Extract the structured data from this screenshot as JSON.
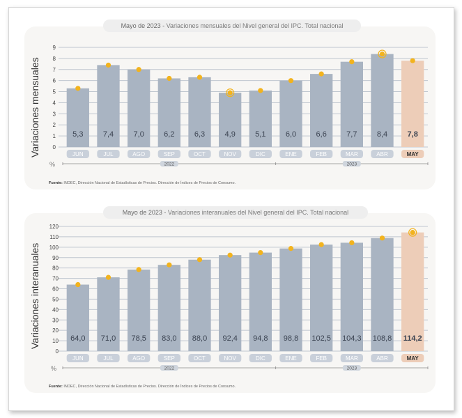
{
  "chart_data": [
    {
      "type": "bar",
      "title_prefix": "Mayo de 2023 -",
      "title": "Variaciones mensuales del Nivel general del IPC. Total nacional",
      "ylabel": "Variaciones mensuales",
      "unit": "%",
      "categories": [
        "JUN",
        "JUL",
        "AGO",
        "SEP",
        "OCT",
        "NOV",
        "DIC",
        "ENE",
        "FEB",
        "MAR",
        "ABR",
        "MAY"
      ],
      "values": [
        5.3,
        7.4,
        7.0,
        6.2,
        6.3,
        4.9,
        5.1,
        6.0,
        6.6,
        7.7,
        8.4,
        7.8
      ],
      "value_labels": [
        "5,3",
        "7,4",
        "7,0",
        "6,2",
        "6,3",
        "4,9",
        "5,1",
        "6,0",
        "6,6",
        "7,7",
        "8,4",
        "7,8"
      ],
      "ylim": [
        0,
        9
      ],
      "yticks": [
        "0",
        "1",
        "2",
        "3",
        "4",
        "5",
        "6",
        "7",
        "8",
        "9"
      ],
      "year_groups": [
        "2022",
        "2023"
      ],
      "highlight_index": 11,
      "ringed_indices": [
        5,
        10
      ],
      "source_label": "Fuente:",
      "source_text": "INDEC, Dirección Nacional de Estadísticas de Precios. Dirección de Índices de Precios de Consumo."
    },
    {
      "type": "bar",
      "title_prefix": "Mayo de 2023 -",
      "title": "Variaciones interanuales del Nivel general del IPC. Total nacional",
      "ylabel": "Variaciones interanuales",
      "unit": "%",
      "categories": [
        "JUN",
        "JUL",
        "AGO",
        "SEP",
        "OCT",
        "NOV",
        "DIC",
        "ENE",
        "FEB",
        "MAR",
        "ABR",
        "MAY"
      ],
      "values": [
        64.0,
        71.0,
        78.5,
        83.0,
        88.0,
        92.4,
        94.8,
        98.8,
        102.5,
        104.3,
        108.8,
        114.2
      ],
      "value_labels": [
        "64,0",
        "71,0",
        "78,5",
        "83,0",
        "88,0",
        "92,4",
        "94,8",
        "98,8",
        "102,5",
        "104,3",
        "108,8",
        "114,2"
      ],
      "ylim": [
        0,
        120
      ],
      "yticks": [
        "0",
        "10",
        "20",
        "30",
        "40",
        "50",
        "60",
        "70",
        "80",
        "90",
        "100",
        "110",
        "120"
      ],
      "year_groups": [
        "2022",
        "2023"
      ],
      "highlight_index": 11,
      "ringed_indices": [
        11
      ],
      "source_label": "Fuente:",
      "source_text": "INDEC, Dirección Nacional de Estadísticas de Precios. Dirección de Índices de Precios de Consumo."
    }
  ],
  "colors": {
    "bar": "#a9b4c2",
    "bar_highlight": "#edcdb8",
    "dot": "#f2b31e",
    "month_pill": "#c9d0da",
    "month_pill_highlight": "#edcdb8",
    "grid": "#bfc6cf"
  }
}
